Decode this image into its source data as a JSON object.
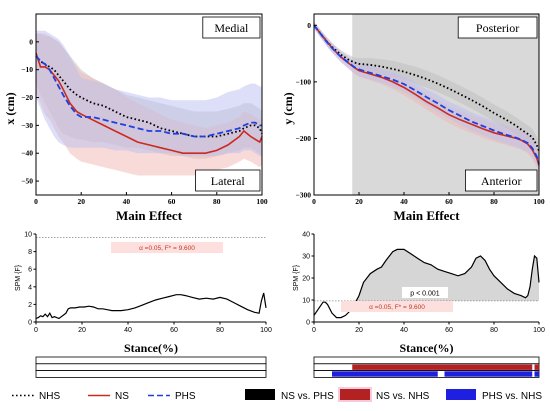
{
  "colors": {
    "nhs": "#000000",
    "ns": "#cc2a1e",
    "phs": "#1f3fe0",
    "ns_band": "#f2b8b2",
    "phs_band": "#b9c0ef",
    "nhs_band": "#bdbdbd",
    "shade": "#d9d9d9",
    "spm_fill": "#d6d6d6",
    "alpha_box": "#fde0dd",
    "bar_black": "#000000",
    "bar_red": "#b22222",
    "bar_blue": "#1f1fe0"
  },
  "chart_data": [
    {
      "id": "ml",
      "type": "line",
      "title": "Main Effect",
      "ylabel": "x (cm)",
      "xlim": [
        0,
        100
      ],
      "ylim": [
        -55,
        10
      ],
      "xticks": [
        0,
        20,
        40,
        60,
        80,
        100
      ],
      "yticks": [
        0,
        -10,
        -20,
        -30,
        -40,
        -50
      ],
      "top_label": "Medial",
      "bottom_label": "Lateral",
      "shaded_region": null,
      "x": [
        0,
        2,
        4,
        6,
        8,
        10,
        12,
        15,
        18,
        20,
        25,
        30,
        35,
        40,
        45,
        50,
        55,
        60,
        65,
        70,
        75,
        80,
        85,
        90,
        92,
        95,
        97,
        99,
        100
      ],
      "series": [
        {
          "key": "nhs",
          "name": "NHS",
          "style": "dotted",
          "values": [
            -5,
            -7,
            -8,
            -9,
            -10,
            -12,
            -14,
            -17,
            -19,
            -20,
            -22,
            -23,
            -25,
            -27,
            -28,
            -29,
            -31,
            -32,
            -33,
            -34,
            -34,
            -34,
            -33,
            -32,
            -31,
            -30,
            -30,
            -31,
            -33
          ],
          "lower": [
            -15,
            -19,
            -22,
            -25,
            -28,
            -31,
            -33,
            -34,
            -35,
            -35,
            -36,
            -36,
            -37,
            -38,
            -38,
            -39,
            -40,
            -41,
            -41,
            -42,
            -42,
            -41,
            -40,
            -39,
            -38,
            -38,
            -39,
            -40,
            -41
          ],
          "upper": [
            3,
            3,
            2,
            2,
            1,
            0,
            -2,
            -5,
            -8,
            -10,
            -13,
            -15,
            -17,
            -19,
            -20,
            -21,
            -22,
            -23,
            -24,
            -25,
            -25,
            -25,
            -24,
            -23,
            -22,
            -22,
            -23,
            -24,
            -25
          ]
        },
        {
          "key": "ns",
          "name": "NS",
          "style": "solid",
          "values": [
            -4,
            -9,
            -9,
            -10,
            -12,
            -14,
            -17,
            -22,
            -25,
            -26,
            -28,
            -30,
            -32,
            -34,
            -36,
            -37,
            -38,
            -39,
            -40,
            -40,
            -40,
            -39,
            -37,
            -34,
            -32,
            -34,
            -35,
            -36,
            -34
          ],
          "lower": [
            -18,
            -22,
            -26,
            -28,
            -31,
            -34,
            -36,
            -40,
            -42,
            -43,
            -44,
            -45,
            -46,
            -47,
            -48,
            -48,
            -48,
            -48,
            -48,
            -48,
            -47,
            -46,
            -45,
            -43,
            -42,
            -43,
            -44,
            -45,
            -44
          ],
          "upper": [
            3,
            3,
            3,
            2,
            1,
            0,
            -2,
            -6,
            -9,
            -11,
            -13,
            -15,
            -17,
            -20,
            -22,
            -24,
            -26,
            -28,
            -29,
            -30,
            -31,
            -30,
            -29,
            -27,
            -25,
            -26,
            -27,
            -28,
            -27
          ]
        },
        {
          "key": "phs",
          "name": "PHS",
          "style": "dashed",
          "values": [
            -5,
            -7,
            -8,
            -10,
            -13,
            -16,
            -19,
            -23,
            -26,
            -27,
            -27,
            -28,
            -29,
            -30,
            -31,
            -32,
            -32,
            -33,
            -33,
            -34,
            -34,
            -33,
            -32,
            -31,
            -30,
            -29,
            -29,
            -30,
            -30
          ],
          "lower": [
            -20,
            -24,
            -28,
            -31,
            -34,
            -36,
            -37,
            -38,
            -38,
            -38,
            -38,
            -38,
            -39,
            -39,
            -40,
            -40,
            -40,
            -40,
            -41,
            -41,
            -41,
            -41,
            -40,
            -40,
            -39,
            -39,
            -40,
            -41,
            -41
          ],
          "upper": [
            4,
            4,
            4,
            3,
            2,
            1,
            -1,
            -5,
            -10,
            -13,
            -14,
            -15,
            -17,
            -18,
            -19,
            -20,
            -20,
            -21,
            -21,
            -21,
            -21,
            -20,
            -18,
            -17,
            -16,
            -15,
            -15,
            -16,
            -16
          ]
        }
      ]
    },
    {
      "id": "ap",
      "type": "line",
      "title": "Main Effect",
      "ylabel": "y (cm)",
      "xlim": [
        0,
        100
      ],
      "ylim": [
        -300,
        20
      ],
      "xticks": [
        0,
        20,
        40,
        60,
        80,
        100
      ],
      "yticks": [
        0,
        -100,
        -200,
        -300
      ],
      "top_label": "Posterior",
      "bottom_label": "Anterior",
      "shaded_region": [
        17,
        100
      ],
      "x": [
        0,
        2,
        4,
        6,
        8,
        10,
        12,
        15,
        18,
        20,
        25,
        30,
        35,
        40,
        45,
        50,
        55,
        60,
        65,
        70,
        75,
        80,
        85,
        90,
        92,
        95,
        97,
        99,
        100
      ],
      "series": [
        {
          "key": "nhs",
          "name": "NHS",
          "style": "dotted",
          "values": [
            0,
            -10,
            -20,
            -30,
            -38,
            -45,
            -52,
            -60,
            -66,
            -68,
            -70,
            -73,
            -77,
            -82,
            -88,
            -95,
            -103,
            -112,
            -122,
            -132,
            -143,
            -155,
            -166,
            -178,
            -184,
            -192,
            -198,
            -212,
            -222
          ],
          "lower": [
            -5,
            -16,
            -27,
            -37,
            -45,
            -52,
            -60,
            -69,
            -75,
            -78,
            -82,
            -86,
            -91,
            -96,
            -103,
            -110,
            -118,
            -127,
            -137,
            -147,
            -158,
            -170,
            -181,
            -193,
            -199,
            -207,
            -214,
            -227,
            -237
          ],
          "upper": [
            5,
            -4,
            -13,
            -23,
            -31,
            -38,
            -44,
            -51,
            -57,
            -58,
            -58,
            -60,
            -63,
            -68,
            -73,
            -80,
            -88,
            -97,
            -107,
            -117,
            -128,
            -140,
            -151,
            -163,
            -169,
            -177,
            -183,
            -197,
            -207
          ]
        },
        {
          "key": "ns",
          "name": "NS",
          "style": "solid",
          "values": [
            0,
            -10,
            -20,
            -30,
            -40,
            -48,
            -56,
            -66,
            -75,
            -80,
            -86,
            -92,
            -100,
            -110,
            -122,
            -135,
            -146,
            -158,
            -167,
            -175,
            -183,
            -190,
            -195,
            -200,
            -203,
            -210,
            -220,
            -235,
            -248
          ],
          "lower": [
            -5,
            -16,
            -27,
            -38,
            -48,
            -56,
            -65,
            -76,
            -86,
            -91,
            -97,
            -104,
            -113,
            -124,
            -136,
            -149,
            -161,
            -173,
            -183,
            -191,
            -199,
            -206,
            -211,
            -217,
            -220,
            -227,
            -237,
            -252,
            -263
          ],
          "upper": [
            5,
            -4,
            -13,
            -22,
            -32,
            -40,
            -47,
            -56,
            -64,
            -69,
            -75,
            -80,
            -87,
            -96,
            -108,
            -121,
            -131,
            -143,
            -151,
            -159,
            -167,
            -174,
            -179,
            -183,
            -186,
            -193,
            -203,
            -218,
            -233
          ]
        },
        {
          "key": "phs",
          "name": "PHS",
          "style": "dashed",
          "values": [
            0,
            -10,
            -21,
            -31,
            -40,
            -48,
            -56,
            -65,
            -74,
            -78,
            -84,
            -90,
            -96,
            -104,
            -115,
            -127,
            -138,
            -150,
            -160,
            -170,
            -178,
            -186,
            -193,
            -199,
            -202,
            -208,
            -217,
            -232,
            -245
          ],
          "lower": [
            -6,
            -17,
            -28,
            -39,
            -48,
            -57,
            -65,
            -75,
            -85,
            -90,
            -96,
            -102,
            -109,
            -118,
            -129,
            -141,
            -153,
            -165,
            -176,
            -186,
            -194,
            -202,
            -209,
            -215,
            -218,
            -224,
            -233,
            -248,
            -260
          ],
          "upper": [
            6,
            -3,
            -14,
            -23,
            -32,
            -39,
            -47,
            -55,
            -63,
            -66,
            -72,
            -78,
            -83,
            -90,
            -101,
            -113,
            -123,
            -135,
            -144,
            -154,
            -162,
            -170,
            -177,
            -183,
            -186,
            -192,
            -201,
            -216,
            -230
          ]
        }
      ]
    },
    {
      "id": "spm_ml",
      "type": "line",
      "ylabel": "SPM {F}",
      "xlabel": "Stance(%)",
      "xlim": [
        0,
        100
      ],
      "ylim": [
        0,
        10
      ],
      "xticks": [
        0,
        20,
        40,
        60,
        80,
        100
      ],
      "yticks": [
        0,
        2,
        4,
        6,
        8,
        10
      ],
      "threshold": 9.6,
      "alpha_text": "α =0.05,     F* = 9.600",
      "x": [
        0,
        1,
        2,
        3,
        4,
        5,
        6,
        7,
        8,
        9,
        10,
        11,
        12,
        13,
        14,
        15,
        17,
        19,
        21,
        23,
        25,
        27,
        29,
        31,
        33,
        35,
        37,
        40,
        43,
        46,
        49,
        52,
        55,
        58,
        61,
        63,
        65,
        68,
        71,
        74,
        77,
        80,
        83,
        86,
        89,
        92,
        95,
        97,
        98,
        99,
        100
      ],
      "values": [
        0.4,
        0.5,
        0.7,
        0.6,
        0.9,
        0.6,
        1.0,
        0.5,
        0.6,
        0.5,
        0.4,
        0.6,
        0.8,
        1.0,
        1.5,
        1.6,
        1.6,
        1.7,
        1.7,
        1.8,
        1.7,
        1.5,
        1.5,
        1.4,
        1.3,
        1.3,
        1.3,
        1.4,
        1.6,
        1.9,
        2.2,
        2.5,
        2.7,
        2.9,
        3.1,
        3.1,
        3.0,
        2.8,
        2.6,
        2.7,
        2.6,
        2.8,
        2.6,
        2.2,
        1.8,
        1.4,
        1.1,
        1.0,
        2.4,
        3.3,
        1.6
      ]
    },
    {
      "id": "spm_ap",
      "type": "area",
      "ylabel": "SPM {F}",
      "xlabel": "Stance(%)",
      "xlim": [
        0,
        100
      ],
      "ylim": [
        0,
        40
      ],
      "xticks": [
        0,
        20,
        40,
        60,
        80,
        100
      ],
      "yticks": [
        0,
        10,
        20,
        30,
        40
      ],
      "threshold": 9.6,
      "alpha_text": "α =0.05,     F* = 9.600",
      "p_text": "p < 0.001",
      "x": [
        0,
        2,
        4,
        5,
        6,
        8,
        10,
        12,
        14,
        16,
        18,
        20,
        22,
        25,
        28,
        30,
        32,
        35,
        37,
        40,
        43,
        46,
        49,
        52,
        55,
        58,
        61,
        64,
        67,
        70,
        72,
        74,
        76,
        78,
        80,
        83,
        86,
        89,
        92,
        94,
        95,
        96,
        97,
        98,
        99,
        100
      ],
      "values": [
        3,
        6,
        9,
        9,
        8,
        4,
        2,
        2,
        3,
        5,
        8,
        12,
        18,
        22,
        24,
        25,
        28,
        32,
        33,
        33,
        31,
        29,
        27,
        26,
        24,
        23,
        22,
        21,
        22,
        25,
        29,
        30,
        28,
        24,
        21,
        18,
        15,
        13,
        12,
        11,
        12,
        16,
        24,
        30,
        29,
        18
      ]
    }
  ],
  "sig_bars": {
    "left": [
      {
        "key": "ns_vs_phs",
        "segments": []
      },
      {
        "key": "ns_vs_nhs",
        "segments": []
      },
      {
        "key": "phs_vs_nhs",
        "segments": []
      }
    ],
    "right": [
      {
        "key": "ns_vs_phs",
        "segments": []
      },
      {
        "key": "ns_vs_nhs",
        "segments": [
          [
            17,
            97
          ],
          [
            98,
            100
          ]
        ]
      },
      {
        "key": "phs_vs_nhs",
        "segments": [
          [
            8,
            55
          ],
          [
            58,
            97
          ],
          [
            98,
            100
          ]
        ]
      }
    ]
  },
  "legend": [
    {
      "key": "nhs",
      "label": "NHS",
      "kind": "dotted"
    },
    {
      "key": "ns",
      "label": "NS",
      "kind": "solid"
    },
    {
      "key": "phs",
      "label": "PHS",
      "kind": "dashed"
    },
    {
      "key": "ns_vs_phs",
      "label": "NS vs. PHS",
      "kind": "box-black"
    },
    {
      "key": "ns_vs_nhs",
      "label": "NS vs. NHS",
      "kind": "box-red"
    },
    {
      "key": "phs_vs_nhs",
      "label": "PHS vs. NHS",
      "kind": "box-blue"
    }
  ]
}
